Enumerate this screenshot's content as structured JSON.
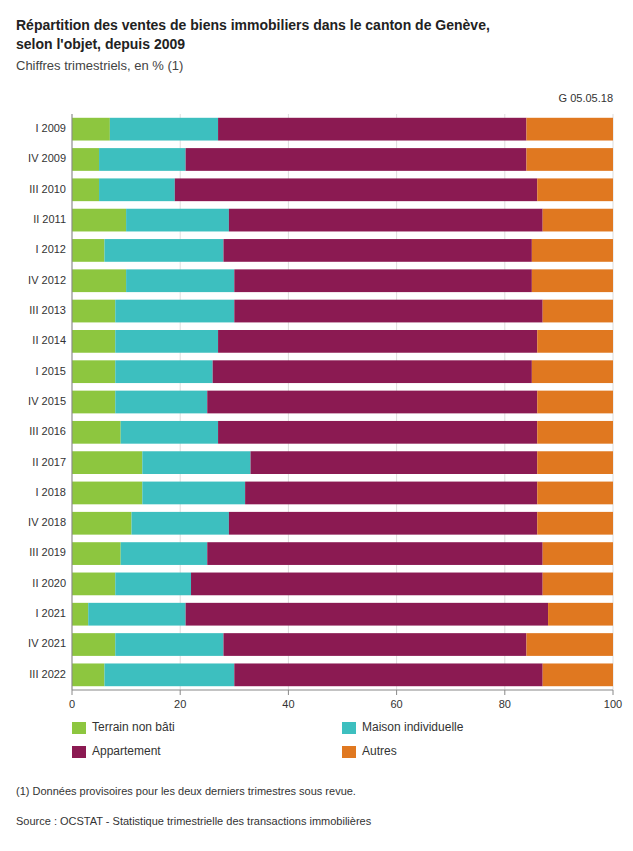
{
  "chart_data": {
    "type": "bar",
    "orientation": "horizontal",
    "stacked": true,
    "title": [
      "Répartition des ventes de biens immobiliers dans le canton de Genève,",
      "selon l'objet, depuis 2009"
    ],
    "subtitle": "Chiffres trimestriels, en % (1)",
    "annotations": [
      "G 05.05.18",
      "(1) Données provisoires pour les deux derniers trimestres sous revue.",
      "Source : OCSTAT - Statistique trimestrielle des transactions immobilières"
    ],
    "categories": [
      "I 2009",
      "IV 2009",
      "III 2010",
      "II 2011",
      "I 2012",
      "IV 2012",
      "III 2013",
      "II 2014",
      "I 2015",
      "IV 2015",
      "III 2016",
      "II 2017",
      "I 2018",
      "IV 2018",
      "III 2019",
      "II 2020",
      "I 2021",
      "IV 2021",
      "III 2022"
    ],
    "series": [
      {
        "name": "Terrain non bâti",
        "color": "#8DC63F",
        "values": [
          7,
          5,
          5,
          10,
          6,
          10,
          8,
          8,
          8,
          8,
          9,
          13,
          13,
          11,
          9,
          8,
          3,
          8,
          6
        ]
      },
      {
        "name": "Maison individuelle",
        "color": "#3DBFBF",
        "values": [
          20,
          16,
          14,
          19,
          22,
          20,
          22,
          19,
          18,
          17,
          18,
          20,
          19,
          18,
          16,
          14,
          18,
          20,
          24
        ]
      },
      {
        "name": "Appartement",
        "color": "#8B1A52",
        "values": [
          57,
          63,
          67,
          58,
          57,
          55,
          57,
          59,
          59,
          61,
          59,
          53,
          54,
          57,
          62,
          65,
          67,
          56,
          57
        ]
      },
      {
        "name": "Autres",
        "color": "#E07820",
        "values": [
          16,
          16,
          14,
          13,
          15,
          15,
          13,
          14,
          15,
          14,
          14,
          14,
          14,
          14,
          13,
          13,
          12,
          16,
          13
        ]
      }
    ],
    "xlim": [
      0,
      100
    ],
    "xticks": [
      0,
      20,
      40,
      60,
      80,
      100
    ],
    "grid": true,
    "legend": "bottom"
  }
}
